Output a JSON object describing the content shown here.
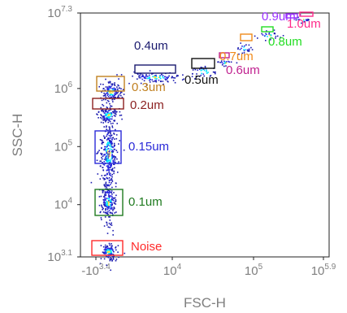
{
  "chart_data": {
    "type": "scatter",
    "xlabel": "FSC-H",
    "ylabel": "SSC-H",
    "x_scale": "biexponential",
    "y_scale": "log",
    "ylim_exp": [
      3.1,
      7.3
    ],
    "x_ticks": [
      {
        "base": "-10",
        "exp": "3.4",
        "value": -2512
      },
      {
        "base": "10",
        "exp": "4",
        "value": 10000
      },
      {
        "base": "10",
        "exp": "5",
        "value": 100000
      },
      {
        "base": "10",
        "exp": "5.9",
        "value": 794328
      }
    ],
    "y_ticks": [
      {
        "base": "10",
        "exp": "3.1",
        "value": 1259
      },
      {
        "base": "10",
        "exp": "4",
        "value": 10000
      },
      {
        "base": "10",
        "exp": "5",
        "value": 100000
      },
      {
        "base": "10",
        "exp": "6",
        "value": 1000000
      },
      {
        "base": "10",
        "exp": "7.3",
        "value": 19952623
      }
    ],
    "gates": [
      {
        "label": "Noise",
        "color": "#ff2a2a",
        "x": -1500,
        "y_exp": 3.18
      },
      {
        "label": "0.1um",
        "color": "#1f7a1f",
        "x": -1200,
        "y_exp": 4.0
      },
      {
        "label": "0.15um",
        "color": "#2a2ad8",
        "x": -1200,
        "y_exp": 4.95
      },
      {
        "label": "0.2um",
        "color": "#8b2020",
        "x": -1000,
        "y_exp": 5.6
      },
      {
        "label": "0.3um",
        "color": "#c08020",
        "x": -900,
        "y_exp": 5.95
      },
      {
        "label": "0.4um",
        "color": "#1a1a6e",
        "x": 6000,
        "y_exp": 6.2
      },
      {
        "label": "0.5um",
        "color": "#111111",
        "x": 28000,
        "y_exp": 6.3
      },
      {
        "label": "0.6um",
        "color": "#c0208f",
        "x": 48000,
        "y_exp": 6.45
      },
      {
        "label": "0.7um",
        "color": "#f08a1a",
        "x": 75000,
        "y_exp": 6.65
      },
      {
        "label": "0.8um",
        "color": "#22dd22",
        "x": 120000,
        "y_exp": 6.9
      },
      {
        "label": "0.9um",
        "color": "#9b30ff",
        "x": 200000,
        "y_exp": 7.15
      },
      {
        "label": "1.0um",
        "color": "#ff2a8a",
        "x": 350000,
        "y_exp": 7.25
      }
    ]
  }
}
